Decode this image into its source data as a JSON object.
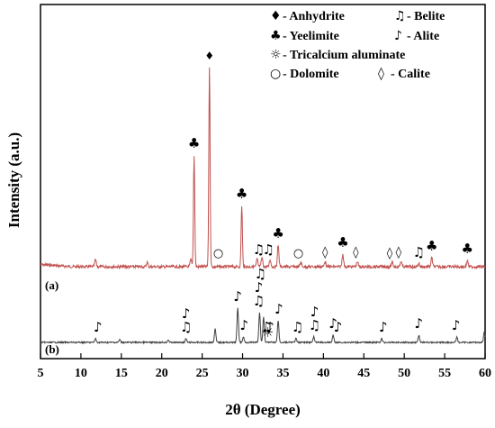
{
  "chart_data": {
    "type": "line",
    "xlabel": "2θ (Degree)",
    "ylabel": "Intensity (a.u.)",
    "xlim": [
      5,
      60
    ],
    "xticks": [
      5,
      10,
      15,
      20,
      25,
      30,
      35,
      40,
      45,
      50,
      55,
      60
    ],
    "grid": false,
    "legend_position": "top-right",
    "legend": [
      {
        "symbol": "♦",
        "label": "- Anhydrite"
      },
      {
        "symbol": "♫",
        "label": "- Belite"
      },
      {
        "symbol": "♣",
        "label": "- Yeelimite"
      },
      {
        "symbol": "♪",
        "label": "- Alite"
      },
      {
        "symbol": "☼",
        "label": "-  Tricalcium aluminate"
      },
      {
        "symbol": "○",
        "label": "- Dolomite"
      },
      {
        "symbol": "◊",
        "label": "- Calite"
      }
    ],
    "series": [
      {
        "label": "(a)",
        "color": "#c0504d",
        "peaks": [
          {
            "x": 11.8,
            "h": 8
          },
          {
            "x": 18.2,
            "h": 5
          },
          {
            "x": 23.6,
            "h": 8
          },
          {
            "x": 24.0,
            "h": 124
          },
          {
            "x": 25.9,
            "h": 222
          },
          {
            "x": 29.9,
            "h": 68
          },
          {
            "x": 31.8,
            "h": 8
          },
          {
            "x": 32.4,
            "h": 10
          },
          {
            "x": 33.4,
            "h": 8
          },
          {
            "x": 34.4,
            "h": 24
          },
          {
            "x": 37.2,
            "h": 5
          },
          {
            "x": 40.2,
            "h": 6
          },
          {
            "x": 42.4,
            "h": 14
          },
          {
            "x": 44.2,
            "h": 6
          },
          {
            "x": 48.5,
            "h": 5
          },
          {
            "x": 49.6,
            "h": 6
          },
          {
            "x": 51.8,
            "h": 4
          },
          {
            "x": 53.4,
            "h": 10
          },
          {
            "x": 57.8,
            "h": 7
          }
        ]
      },
      {
        "label": "(b)",
        "color": "#404040",
        "peaks": [
          {
            "x": 11.8,
            "h": 4
          },
          {
            "x": 14.8,
            "h": 3
          },
          {
            "x": 20.8,
            "h": 3
          },
          {
            "x": 23.0,
            "h": 4
          },
          {
            "x": 26.6,
            "h": 15
          },
          {
            "x": 29.4,
            "h": 38
          },
          {
            "x": 30.1,
            "h": 6
          },
          {
            "x": 32.1,
            "h": 33
          },
          {
            "x": 32.6,
            "h": 28
          },
          {
            "x": 34.4,
            "h": 24
          },
          {
            "x": 36.6,
            "h": 4
          },
          {
            "x": 38.8,
            "h": 6
          },
          {
            "x": 41.2,
            "h": 8
          },
          {
            "x": 47.2,
            "h": 4
          },
          {
            "x": 51.8,
            "h": 8
          },
          {
            "x": 56.5,
            "h": 6
          },
          {
            "x": 59.9,
            "h": 12
          }
        ]
      }
    ],
    "annotations": [
      {
        "series": "(a)",
        "x": 25.9,
        "symbol": "♦"
      },
      {
        "series": "(a)",
        "x": 24.0,
        "symbol": "♣"
      },
      {
        "series": "(a)",
        "x": 29.9,
        "symbol": "♣"
      },
      {
        "series": "(a)",
        "x": 34.4,
        "symbol": "♣"
      },
      {
        "series": "(a)",
        "x": 42.4,
        "symbol": "♣"
      },
      {
        "series": "(a)",
        "x": 53.4,
        "symbol": "♣"
      },
      {
        "series": "(a)",
        "x": 57.8,
        "symbol": "♣"
      },
      {
        "series": "(a)",
        "x": 27.0,
        "symbol": "○"
      },
      {
        "series": "(a)",
        "x": 36.9,
        "symbol": "○"
      },
      {
        "series": "(a)",
        "x": 32.0,
        "symbol": "♫"
      },
      {
        "series": "(a)",
        "x": 33.2,
        "symbol": "♫"
      },
      {
        "series": "(a)",
        "x": 51.8,
        "symbol": "♫"
      },
      {
        "series": "(a)",
        "x": 40.2,
        "symbol": "◊"
      },
      {
        "series": "(a)",
        "x": 44.0,
        "symbol": "◊"
      },
      {
        "series": "(a)",
        "x": 48.2,
        "symbol": "◊"
      },
      {
        "series": "(a)",
        "x": 49.3,
        "symbol": "◊"
      },
      {
        "series": "(b)",
        "x": 12.1,
        "symbol": "♪"
      },
      {
        "series": "(b)",
        "x": 23.0,
        "symbol": "♫"
      },
      {
        "series": "(b)",
        "x": 23.0,
        "symbol": "♪"
      },
      {
        "series": "(b)",
        "x": 29.4,
        "symbol": "♪"
      },
      {
        "series": "(b)",
        "x": 30.2,
        "symbol": "♪"
      },
      {
        "series": "(b)",
        "x": 32.0,
        "symbol": "♫"
      },
      {
        "series": "(b)",
        "x": 32.0,
        "symbol": "♪"
      },
      {
        "series": "(b)",
        "x": 32.2,
        "symbol": "♫"
      },
      {
        "series": "(b)",
        "x": 33.0,
        "symbol": "♫"
      },
      {
        "series": "(b)",
        "x": 33.4,
        "symbol": "♪"
      },
      {
        "series": "(b)",
        "x": 33.1,
        "symbol": "☼"
      },
      {
        "series": "(b)",
        "x": 34.5,
        "symbol": "♪"
      },
      {
        "series": "(b)",
        "x": 36.8,
        "symbol": "♫"
      },
      {
        "series": "(b)",
        "x": 38.9,
        "symbol": "♫"
      },
      {
        "series": "(b)",
        "x": 38.9,
        "symbol": "♪"
      },
      {
        "series": "(b)",
        "x": 41.2,
        "symbol": "♪"
      },
      {
        "series": "(b)",
        "x": 41.8,
        "symbol": "♪"
      },
      {
        "series": "(b)",
        "x": 47.4,
        "symbol": "♪"
      },
      {
        "series": "(b)",
        "x": 51.8,
        "symbol": "♪"
      },
      {
        "series": "(b)",
        "x": 56.4,
        "symbol": "♪"
      }
    ]
  }
}
